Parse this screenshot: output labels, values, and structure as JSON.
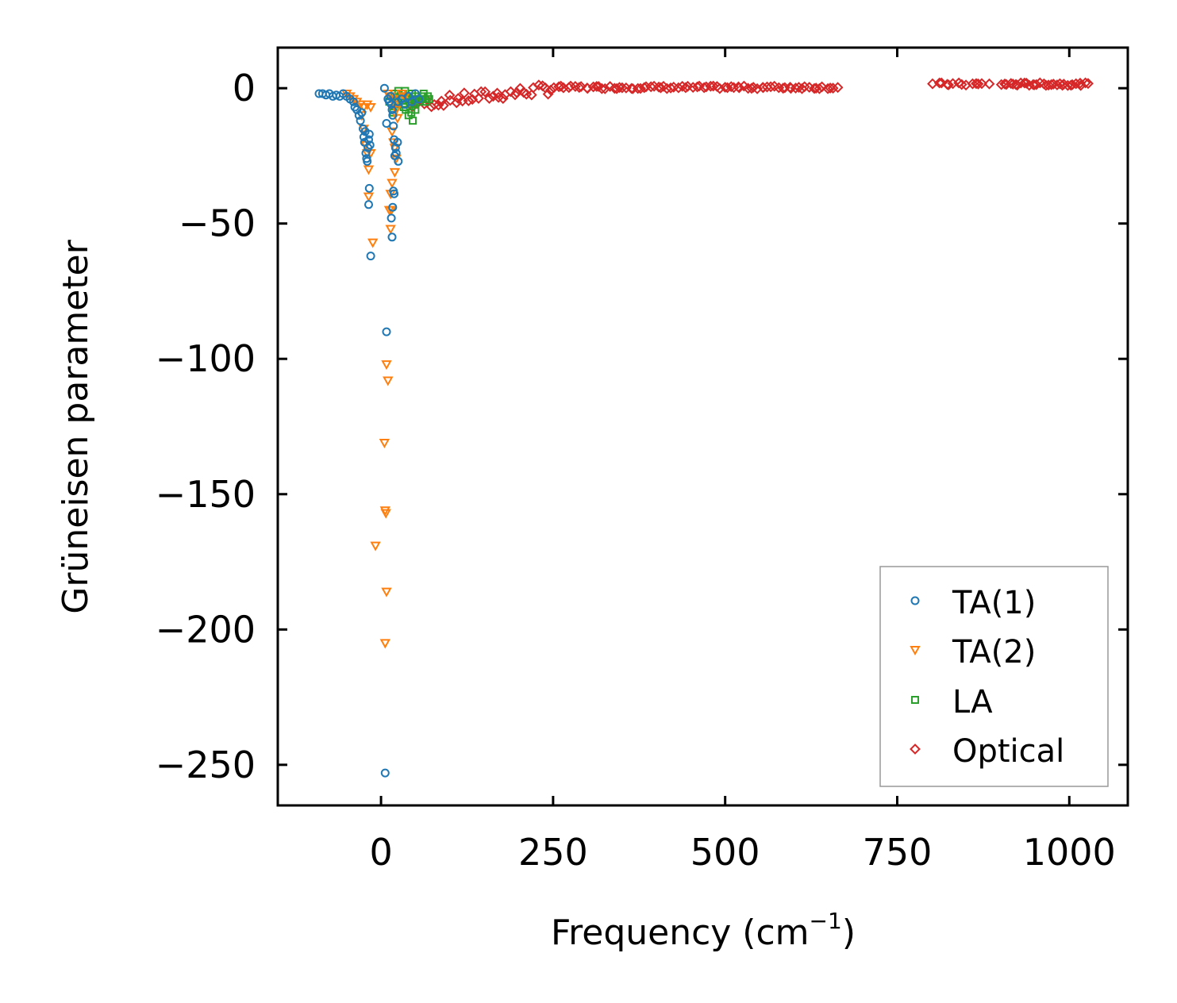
{
  "chart_data": {
    "type": "scatter",
    "xlabel": "Frequency (cm",
    "xlabel_sup": "−1",
    "xlabel_close": ")",
    "ylabel": "Grüneisen parameter",
    "xlim": [
      -150,
      1085
    ],
    "ylim": [
      -265,
      15
    ],
    "xticks": [
      0,
      250,
      500,
      750,
      1000
    ],
    "xtick_labels": [
      "0",
      "250",
      "500",
      "750",
      "1000"
    ],
    "yticks": [
      0,
      -50,
      -100,
      -150,
      -200,
      -250
    ],
    "ytick_labels": [
      "0",
      "−50",
      "−100",
      "−150",
      "−200",
      "−250"
    ],
    "grid": false,
    "legend_position": "bottom-right",
    "series": [
      {
        "name": "TA(1)",
        "color": "#1f77b4",
        "marker": "circle",
        "points": [
          [
            -90,
            -2
          ],
          [
            -85,
            -2
          ],
          [
            -80,
            -2.5
          ],
          [
            -75,
            -2
          ],
          [
            -70,
            -3
          ],
          [
            -65,
            -2.5
          ],
          [
            -60,
            -3
          ],
          [
            -55,
            -2
          ],
          [
            -50,
            -3
          ],
          [
            -45,
            -4
          ],
          [
            -40,
            -5
          ],
          [
            -38,
            -7
          ],
          [
            -35,
            -8
          ],
          [
            -32,
            -10
          ],
          [
            -30,
            -12
          ],
          [
            -28,
            -9
          ],
          [
            -26,
            -15
          ],
          [
            -25,
            -18
          ],
          [
            -24,
            -20
          ],
          [
            -23,
            -16
          ],
          [
            -22,
            -24
          ],
          [
            -21,
            -26
          ],
          [
            -20,
            -27
          ],
          [
            -19,
            -22
          ],
          [
            -18,
            -19
          ],
          [
            -17,
            -17
          ],
          [
            -16,
            -21
          ],
          [
            -17,
            -37
          ],
          [
            -18,
            -43
          ],
          [
            -15,
            -62
          ],
          [
            10,
            -4
          ],
          [
            12,
            -5
          ],
          [
            14,
            -3
          ],
          [
            15,
            -6
          ],
          [
            16,
            -8
          ],
          [
            17,
            -10
          ],
          [
            18,
            -14
          ],
          [
            19,
            -19
          ],
          [
            20,
            -25
          ],
          [
            21,
            -22
          ],
          [
            22,
            -24
          ],
          [
            24,
            -20
          ],
          [
            25,
            -27
          ],
          [
            18,
            -38
          ],
          [
            19,
            -39
          ],
          [
            17,
            -44
          ],
          [
            15,
            -48
          ],
          [
            16,
            -55
          ],
          [
            8,
            -13
          ],
          [
            5,
            0
          ],
          [
            25,
            -5
          ],
          [
            30,
            -4
          ],
          [
            35,
            -6
          ],
          [
            40,
            -3
          ],
          [
            45,
            -5
          ],
          [
            50,
            -2
          ],
          [
            55,
            -4
          ],
          [
            8,
            -90
          ],
          [
            6,
            -253
          ]
        ]
      },
      {
        "name": "TA(2)",
        "color": "#ff7f0e",
        "marker": "triangle-down",
        "points": [
          [
            -50,
            -2
          ],
          [
            -45,
            -3
          ],
          [
            -40,
            -4
          ],
          [
            -35,
            -5
          ],
          [
            -30,
            -6
          ],
          [
            -25,
            -7
          ],
          [
            -20,
            -6
          ],
          [
            -15,
            -7
          ],
          [
            -28,
            -10
          ],
          [
            -25,
            -15
          ],
          [
            -22,
            -21
          ],
          [
            -20,
            -24
          ],
          [
            -18,
            -30
          ],
          [
            -15,
            -24
          ],
          [
            -18,
            -40
          ],
          [
            -12,
            -57
          ],
          [
            10,
            -2
          ],
          [
            14,
            -3
          ],
          [
            18,
            -4
          ],
          [
            20,
            -6
          ],
          [
            22,
            -8
          ],
          [
            24,
            -11
          ],
          [
            16,
            -16
          ],
          [
            18,
            -20
          ],
          [
            20,
            -22
          ],
          [
            22,
            -26
          ],
          [
            20,
            -31
          ],
          [
            16,
            -35
          ],
          [
            14,
            -39
          ],
          [
            15,
            -45
          ],
          [
            12,
            -45
          ],
          [
            14,
            -52
          ],
          [
            8,
            -102
          ],
          [
            10,
            -108
          ],
          [
            5,
            -131
          ],
          [
            6,
            -156
          ],
          [
            7,
            -157
          ],
          [
            -8,
            -169
          ],
          [
            8,
            -186
          ],
          [
            6,
            -205
          ],
          [
            30,
            -2
          ],
          [
            35,
            -3
          ]
        ]
      },
      {
        "name": "LA",
        "color": "#2ca02c",
        "marker": "square",
        "points": [
          [
            15,
            -3
          ],
          [
            20,
            -2
          ],
          [
            25,
            -1
          ],
          [
            28,
            -3
          ],
          [
            30,
            -4
          ],
          [
            32,
            -2
          ],
          [
            35,
            -1
          ],
          [
            38,
            -3
          ],
          [
            40,
            -4
          ],
          [
            42,
            -5
          ],
          [
            45,
            -2
          ],
          [
            48,
            -6
          ],
          [
            50,
            -3
          ],
          [
            52,
            -4
          ],
          [
            55,
            -5
          ],
          [
            58,
            -4
          ],
          [
            60,
            -3
          ],
          [
            62,
            -2
          ],
          [
            64,
            -4
          ],
          [
            66,
            -5
          ],
          [
            68,
            -3
          ],
          [
            70,
            -4
          ],
          [
            22,
            -5
          ],
          [
            26,
            -6
          ],
          [
            33,
            -7
          ],
          [
            36,
            -8
          ],
          [
            40,
            -10
          ],
          [
            44,
            -9
          ],
          [
            46,
            -12
          ],
          [
            50,
            -8
          ],
          [
            18,
            -9
          ],
          [
            12,
            -5
          ]
        ]
      },
      {
        "name": "Optical",
        "color": "#d62728",
        "marker": "diamond",
        "points": []
      }
    ]
  },
  "legend": {
    "entries": [
      "TA(1)",
      "TA(2)",
      "LA",
      "Optical"
    ]
  }
}
